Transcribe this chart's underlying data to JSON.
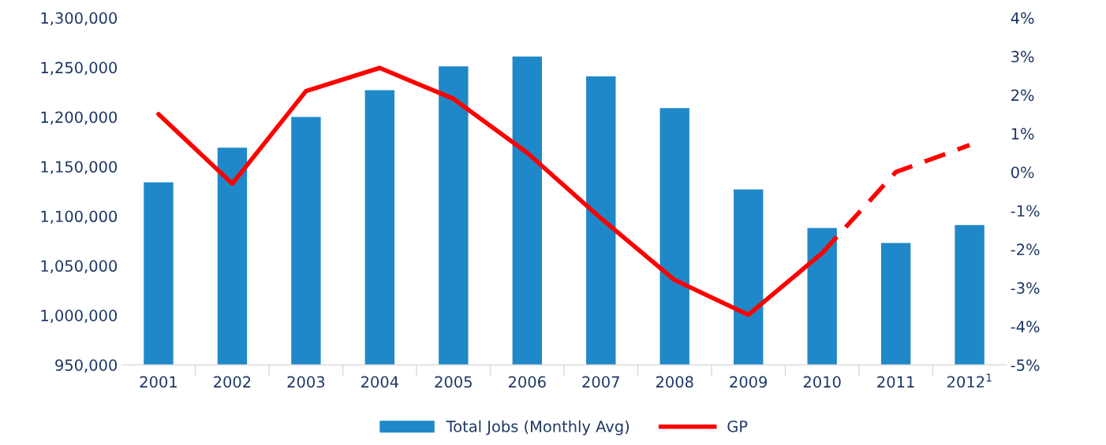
{
  "chart_data": {
    "type": "bar",
    "categories": [
      "2001",
      "2002",
      "2003",
      "2004",
      "2005",
      "2006",
      "2007",
      "2008",
      "2009",
      "2010",
      "2011",
      "2012$^{1}$"
    ],
    "series": [
      {
        "name": "Total Jobs (Monthly Avg)",
        "color": "#1f88c9",
        "values": [
          1134000,
          1169000,
          1200000,
          1227000,
          1251000,
          1261000,
          1241000,
          1209000,
          1127000,
          1088000,
          1073000,
          1091000
        ]
      },
      {
        "name": "GP",
        "type": "line",
        "axis": "y2",
        "line_style": "solid",
        "color": "#ff0000",
        "values": [
          1.5,
          -0.3,
          2.1,
          2.7,
          1.9,
          0.5,
          -1.2,
          -2.8,
          -3.7,
          -2.1,
          null,
          null
        ]
      },
      {
        "type": "line",
        "axis": "y2",
        "line_style": "dashed",
        "color": "#ff0000",
        "values": [
          null,
          null,
          null,
          null,
          null,
          null,
          null,
          null,
          null,
          -2.1,
          0.0,
          0.7
        ]
      }
    ],
    "ylim": [
      950000,
      1300000
    ],
    "yticks": [
      {
        "value": 950000,
        "label": "950,000"
      },
      {
        "value": 1000000,
        "label": "1,000,000"
      },
      {
        "value": 1050000,
        "label": "1,050,000"
      },
      {
        "value": 1100000,
        "label": "1,100,000"
      },
      {
        "value": 1150000,
        "label": "1,150,000"
      },
      {
        "value": 1200000,
        "label": "1,200,000"
      },
      {
        "value": 1250000,
        "label": "1,250,000"
      },
      {
        "value": 1300000,
        "label": "1,300,000"
      }
    ],
    "y2lim": [
      -5,
      4
    ],
    "y2ticks": [
      {
        "value": -5,
        "label": "-5%"
      },
      {
        "value": -4,
        "label": "-4%"
      },
      {
        "value": -3,
        "label": "-3%"
      },
      {
        "value": -2,
        "label": "-2%"
      },
      {
        "value": -1,
        "label": "-1%"
      },
      {
        "value": 0,
        "label": "0%"
      },
      {
        "value": 1,
        "label": "1%"
      },
      {
        "value": 2,
        "label": "2%"
      },
      {
        "value": 3,
        "label": "3%"
      },
      {
        "value": 4,
        "label": "4%"
      }
    ],
    "grid": false,
    "legend": "bottom",
    "marker": "none"
  }
}
